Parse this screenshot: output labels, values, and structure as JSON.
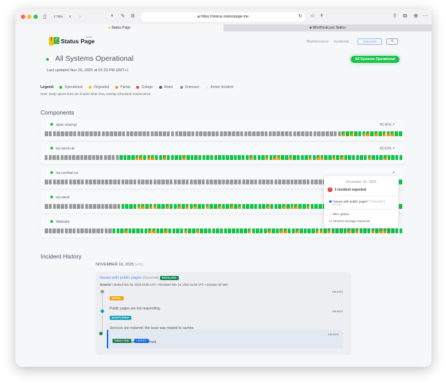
{
  "browser": {
    "tabs_count": "2 Tabs",
    "url": "https://status.statuspage.me",
    "tabs": [
      {
        "label": "Status Page"
      },
      {
        "label": "WhoHosts.pro Status"
      }
    ]
  },
  "header": {
    "logo_text": "Status Page",
    "logo_sub": "hosted",
    "nav": [
      "Maintenance",
      "Incidents"
    ],
    "subscribe": "Subscribe",
    "settings_icon": "gear-icon"
  },
  "status": {
    "title": "All Systems Operational",
    "updated": "Last updated Nov 26, 2025 at 01:23 PM GMT+1",
    "badge": "All Systems Operational"
  },
  "legend": {
    "label": "Legend:",
    "items": [
      {
        "label": "Operational",
        "color": "#17c24a"
      },
      {
        "label": "Degraded",
        "color": "#f5c20f"
      },
      {
        "label": "Partial",
        "color": "#f5920f"
      },
      {
        "label": "Outage",
        "color": "#e53935"
      },
      {
        "label": "Maint.",
        "color": "#455a64"
      },
      {
        "label": "Unknown",
        "color": "#8a8a8a"
      },
      {
        "label": "Active Incident",
        "color": "#f7ead6"
      }
    ],
    "note": "Note: Daily uptime ticks are shaded when they overlap scheduled maintenance."
  },
  "components_title": "Components",
  "components": [
    {
      "name": "apac-east-jp",
      "uptime": "99.46%",
      "ticks": "uuuuuuuuuuuuuuuuuuuuuuuuuuuuuuuuuuuuuuuuuuuuuuuuuuuuuuuuuuuuuuuuuuuuuuuuupopooppopopppoo"
    },
    {
      "name": "eu-west-uk",
      "uptime": "99.63%",
      "ticks": "uuuuuuuuuuuuuuuuuuuooooppoppoopoooopoooooooooooooooopooopoppoopoooopoppoopopoooooopooopoooo"
    },
    {
      "name": "na-central-us",
      "uptime": "",
      "ticks": "uuuuuuuuuuuuuuuuuuuuuuuuuuuuuuuuuuuuuuuuuuuuuuuuuuuuuuuuuuuuuuuuuuuuuuuuuuuuuuuuuuuuuoooo"
    },
    {
      "name": "na-west",
      "uptime": "",
      "ticks": "uuuuuuuuuuuuuuuuuuuooooppoppoopoopopopoopoopoopopoooooopooopoppoopoooopoppoopopooopoppooo"
    },
    {
      "name": "Website",
      "uptime": "",
      "ticks": "uuuuuuuuuuuuuuuuuooopoooooppoopoooopoopoooooooooooopoooopooppoopooooppopoooopopooopoppoooo"
    }
  ],
  "tooltip": {
    "date": "November 16, 2025",
    "summary": "1 incident reported",
    "incident": "\"Issues with public pages\"",
    "incident_cat": "(\"General\")",
    "incident_state": "Resolved",
    "uptime": "99% uptime",
    "response": "1534ms average response"
  },
  "history": {
    "title": "Incident History",
    "date": "NOVEMBER 16, 2025",
    "tz": "(UTC)",
    "incident": {
      "title": "Issues with public pages",
      "category": "(General)",
      "badge": "RESOLVED",
      "meta_bold": "General",
      "meta": " • Started Nov 16, 2025 04:50 UTC • Resolved Nov 16, 2025 11:50 UTC • Duration 6h 59m",
      "updates": [
        {
          "badge": "INITIAL",
          "color": "#f5a00f",
          "ago": "1W AGO",
          "msg": "Public pages are not responding.",
          "dot": "#9a9a9a"
        },
        {
          "badge": "MONITORING",
          "color": "#17a2b8",
          "ago": "1W AGO",
          "msg": "Services are restored; the issue was related to caches.",
          "dot": "#17a2b8"
        },
        {
          "badge": "RESOLVED",
          "badge2": "LATEST",
          "color": "#198754",
          "color2": "#0d6efd",
          "ago": "1W AGO",
          "msg": "The issue seems to be fixed.",
          "dot": "#198754"
        }
      ]
    }
  }
}
